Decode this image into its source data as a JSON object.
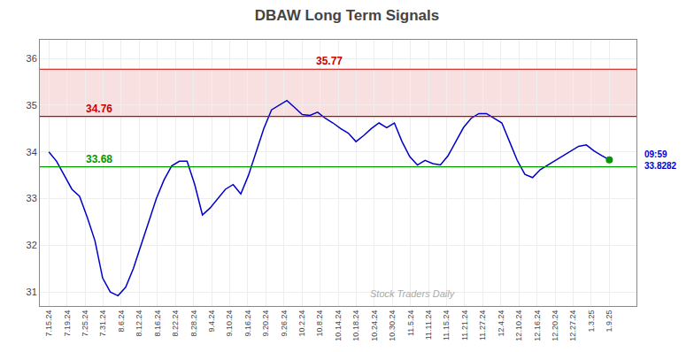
{
  "chart_data": {
    "type": "line",
    "title": "DBAW Long Term Signals",
    "x": [
      0,
      0.4247,
      0.8493,
      1.274,
      1.6986,
      2.1233,
      2.5479,
      2.9726,
      3.3973,
      3.8219,
      4.2466,
      4.6712,
      5.0959,
      5.5205,
      5.9452,
      6.3699,
      6.7945,
      7.2192,
      7.6438,
      8.0685,
      8.4932,
      8.9178,
      9.3425,
      9.7671,
      10.1918,
      10.6164,
      11.0411,
      11.4658,
      11.8904,
      12.3151,
      12.7397,
      13.1644,
      13.589,
      14.0137,
      14.4384,
      14.863,
      15.2877,
      15.7123,
      16.137,
      16.5616,
      16.9863,
      17.411,
      17.8356,
      18.2603,
      18.6849,
      19.1096,
      19.5342,
      19.9589,
      20.3836,
      20.8082,
      21.2329,
      21.6575,
      22.0822,
      22.5068,
      22.9315,
      23.3562,
      23.7808,
      24.2055,
      24.6301,
      25.0548,
      25.4795,
      25.9041,
      26.3288,
      26.7534,
      27.1781,
      27.6027,
      28.0274,
      28.4521,
      28.8767,
      29.3014,
      29.726,
      30.1507,
      30.5753,
      31
    ],
    "values": [
      34.0,
      33.8,
      33.5,
      33.2,
      33.05,
      32.6,
      32.1,
      31.3,
      31.0,
      30.92,
      31.1,
      31.5,
      32.0,
      32.5,
      33.0,
      33.4,
      33.7,
      33.8,
      33.8,
      33.3,
      32.65,
      32.8,
      33.0,
      33.2,
      33.3,
      33.1,
      33.5,
      34.0,
      34.5,
      34.9,
      35.0,
      35.1,
      34.95,
      34.8,
      34.78,
      34.85,
      34.72,
      34.62,
      34.5,
      34.4,
      34.22,
      34.35,
      34.5,
      34.62,
      34.52,
      34.62,
      34.22,
      33.9,
      33.72,
      33.82,
      33.75,
      33.72,
      33.92,
      34.22,
      34.52,
      34.72,
      34.82,
      34.82,
      34.72,
      34.62,
      34.22,
      33.82,
      33.52,
      33.45,
      33.62,
      33.72,
      33.82,
      33.92,
      34.02,
      34.12,
      34.15,
      34.02,
      33.92,
      33.83
    ],
    "color": "#0000cc",
    "xlim": [
      -0.5,
      32.5
    ],
    "xticks": [
      {
        "value": 0,
        "label": "7.15.24"
      },
      {
        "value": 1,
        "label": "7.19.24"
      },
      {
        "value": 2,
        "label": "7.25.24"
      },
      {
        "value": 3,
        "label": "7.31.24"
      },
      {
        "value": 4,
        "label": "8.6.24"
      },
      {
        "value": 5,
        "label": "8.12.24"
      },
      {
        "value": 6,
        "label": "8.16.24"
      },
      {
        "value": 7,
        "label": "8.22.24"
      },
      {
        "value": 8,
        "label": "8.28.24"
      },
      {
        "value": 9,
        "label": "9.4.24"
      },
      {
        "value": 10,
        "label": "9.10.24"
      },
      {
        "value": 11,
        "label": "9.16.24"
      },
      {
        "value": 12,
        "label": "9.20.24"
      },
      {
        "value": 13,
        "label": "9.26.24"
      },
      {
        "value": 14,
        "label": "10.2.24"
      },
      {
        "value": 15,
        "label": "10.8.24"
      },
      {
        "value": 16,
        "label": "10.14.24"
      },
      {
        "value": 17,
        "label": "10.18.24"
      },
      {
        "value": 18,
        "label": "10.24.24"
      },
      {
        "value": 19,
        "label": "10.30.24"
      },
      {
        "value": 20,
        "label": "11.5.24"
      },
      {
        "value": 21,
        "label": "11.11.24"
      },
      {
        "value": 22,
        "label": "11.15.24"
      },
      {
        "value": 23,
        "label": "11.21.24"
      },
      {
        "value": 24,
        "label": "11.27.24"
      },
      {
        "value": 25,
        "label": "12.4.24"
      },
      {
        "value": 26,
        "label": "12.10.24"
      },
      {
        "value": 27,
        "label": "12.16.24"
      },
      {
        "value": 28,
        "label": "12.20.24"
      },
      {
        "value": 29,
        "label": "12.27.24"
      },
      {
        "value": 30,
        "label": "1.3.25"
      },
      {
        "value": 31,
        "label": "1.9.25"
      }
    ],
    "ylim": [
      30.7,
      36.4
    ],
    "yticks": [
      31,
      32,
      33,
      34,
      35,
      36
    ],
    "grid": true,
    "band": {
      "from": 34.76,
      "to": 35.77,
      "color": "#cc0000"
    },
    "reference_lines": [
      {
        "value": 35.77,
        "label": "35.77",
        "color": "#cc0000"
      },
      {
        "value": 34.76,
        "label": "34.76",
        "color": "#cc0000"
      },
      {
        "value": 33.68,
        "label": "33.68",
        "color": "#009900"
      }
    ],
    "end_point": {
      "color": "#009900",
      "labels": [
        "09:59",
        "33.8282"
      ]
    },
    "annotations": [
      "Stock Traders Daily"
    ]
  }
}
